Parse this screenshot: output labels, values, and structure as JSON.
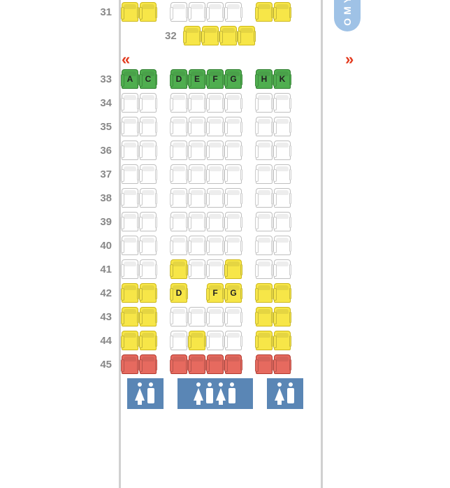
{
  "class_label": "OMY",
  "colors": {
    "white": "#ffffff",
    "yellow": "#f7e648",
    "green": "#4fae4f",
    "red": "#e66a5f",
    "fuselage_border": "#d0d0d0",
    "row_num": "#888888",
    "exit_arrow": "#e33a1e",
    "lav_bg": "#5a86b5",
    "badge_bg": "#9fc2e6"
  },
  "column_letters": [
    "A",
    "C",
    "D",
    "E",
    "F",
    "G",
    "H",
    "K"
  ],
  "layout": {
    "groups": [
      [
        "A",
        "C"
      ],
      [
        "D",
        "E",
        "F",
        "G"
      ],
      [
        "H",
        "K"
      ]
    ]
  },
  "rows": [
    {
      "num": "31",
      "seats": {
        "A": "yellow",
        "C": "yellow",
        "D": "white",
        "E": "white",
        "F": "white",
        "G": "white",
        "H": "yellow",
        "K": "yellow"
      }
    },
    {
      "num": "32",
      "inset_label": true,
      "seats": {
        "D": "yellow",
        "E": "yellow",
        "F": "yellow",
        "G": "yellow"
      }
    },
    {
      "type": "exit"
    },
    {
      "num": "33",
      "seats": {
        "A": "green",
        "C": "green",
        "D": "green",
        "E": "green",
        "F": "green",
        "G": "green",
        "H": "green",
        "K": "green"
      },
      "labels": {
        "A": "A",
        "C": "C",
        "D": "D",
        "E": "E",
        "F": "F",
        "G": "G",
        "H": "H",
        "K": "K"
      }
    },
    {
      "num": "34",
      "seats": {
        "A": "white",
        "C": "white",
        "D": "white",
        "E": "white",
        "F": "white",
        "G": "white",
        "H": "white",
        "K": "white"
      }
    },
    {
      "num": "35",
      "seats": {
        "A": "white",
        "C": "white",
        "D": "white",
        "E": "white",
        "F": "white",
        "G": "white",
        "H": "white",
        "K": "white"
      }
    },
    {
      "num": "36",
      "seats": {
        "A": "white",
        "C": "white",
        "D": "white",
        "E": "white",
        "F": "white",
        "G": "white",
        "H": "white",
        "K": "white"
      }
    },
    {
      "num": "37",
      "seats": {
        "A": "white",
        "C": "white",
        "D": "white",
        "E": "white",
        "F": "white",
        "G": "white",
        "H": "white",
        "K": "white"
      }
    },
    {
      "num": "38",
      "seats": {
        "A": "white",
        "C": "white",
        "D": "white",
        "E": "white",
        "F": "white",
        "G": "white",
        "H": "white",
        "K": "white"
      }
    },
    {
      "num": "39",
      "seats": {
        "A": "white",
        "C": "white",
        "D": "white",
        "E": "white",
        "F": "white",
        "G": "white",
        "H": "white",
        "K": "white"
      }
    },
    {
      "num": "40",
      "seats": {
        "A": "white",
        "C": "white",
        "D": "white",
        "E": "white",
        "F": "white",
        "G": "white",
        "H": "white",
        "K": "white"
      }
    },
    {
      "num": "41",
      "seats": {
        "A": "white",
        "C": "white",
        "D": "yellow",
        "E": "white",
        "F": "white",
        "G": "yellow",
        "H": "white",
        "K": "white"
      }
    },
    {
      "num": "42",
      "seats": {
        "A": "yellow",
        "C": "yellow",
        "D": "yellow",
        "F": "yellow",
        "G": "yellow",
        "H": "yellow",
        "K": "yellow"
      },
      "labels": {
        "D": "D",
        "F": "F",
        "G": "G"
      }
    },
    {
      "num": "43",
      "seats": {
        "A": "yellow",
        "C": "yellow",
        "D": "white",
        "E": "white",
        "F": "white",
        "G": "white",
        "H": "yellow",
        "K": "yellow"
      }
    },
    {
      "num": "44",
      "seats": {
        "A": "yellow",
        "C": "yellow",
        "D": "white",
        "E": "yellow",
        "F": "white",
        "G": "white",
        "H": "yellow",
        "K": "yellow"
      }
    },
    {
      "num": "45",
      "seats": {
        "A": "red",
        "C": "red",
        "D": "red",
        "E": "red",
        "F": "red",
        "G": "red",
        "H": "red",
        "K": "red"
      }
    },
    {
      "type": "lavatory"
    }
  ],
  "lavatories": {
    "left": [
      "female",
      "male"
    ],
    "mid": [
      "female",
      "male",
      "female",
      "male"
    ],
    "right": [
      "female",
      "male"
    ]
  }
}
